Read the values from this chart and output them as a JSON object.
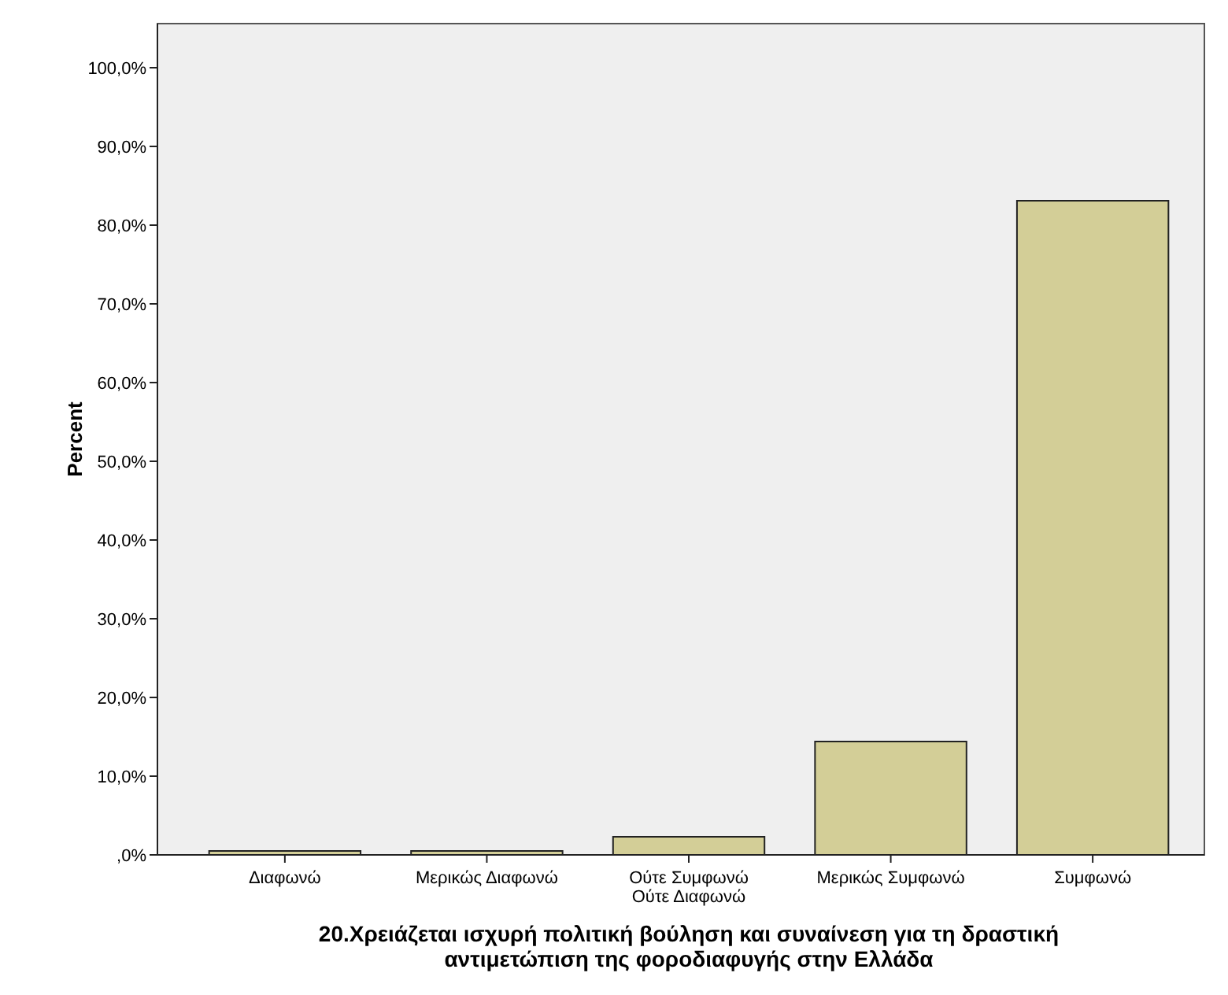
{
  "chart_data": {
    "type": "bar",
    "xlabel": "20.Χρειάζεται ισχυρή πολιτική βούληση και συναίνεση για τη δραστική\nαντιμετώπιση της φοροδιαφυγής στην Ελλάδα",
    "ylabel": "Percent",
    "categories": [
      "Διαφωνώ",
      "Μερικώς Διαφωνώ",
      "Ούτε Συμφωνώ\nΟύτε Διαφωνώ",
      "Μερικώς Συμφωνώ",
      "Συμφωνώ"
    ],
    "values": [
      0.5,
      0.5,
      2.3,
      14.4,
      83.1
    ],
    "color": "#d3ce97",
    "ylim": [
      0,
      105.6
    ],
    "yticks": [
      {
        "value": 0,
        "label": ",0%"
      },
      {
        "value": 10,
        "label": "10,0%"
      },
      {
        "value": 20,
        "label": "20,0%"
      },
      {
        "value": 30,
        "label": "30,0%"
      },
      {
        "value": 40,
        "label": "40,0%"
      },
      {
        "value": 50,
        "label": "50,0%"
      },
      {
        "value": 60,
        "label": "60,0%"
      },
      {
        "value": 70,
        "label": "70,0%"
      },
      {
        "value": 80,
        "label": "80,0%"
      },
      {
        "value": 90,
        "label": "90,0%"
      },
      {
        "value": 100,
        "label": "100,0%"
      }
    ],
    "grid": false
  }
}
